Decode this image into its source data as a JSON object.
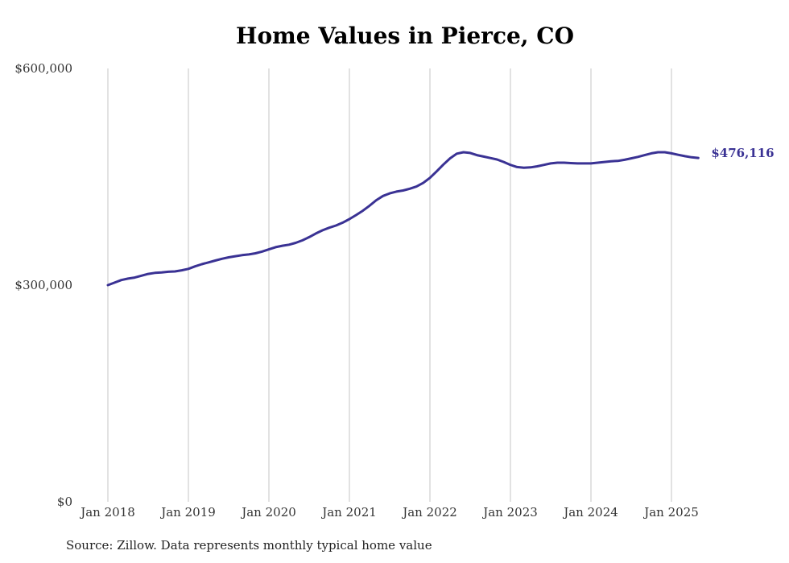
{
  "chart_data": {
    "type": "line",
    "title": "Home Values in Pierce, CO",
    "xlabel": "",
    "ylabel": "",
    "ylim": [
      0,
      600000
    ],
    "y_ticks": [
      {
        "value": 0,
        "label": "$0"
      },
      {
        "value": 300000,
        "label": "$300,000"
      },
      {
        "value": 600000,
        "label": "$600,000"
      }
    ],
    "x_ticks": [
      {
        "date": "2018-01",
        "label": "Jan 2018"
      },
      {
        "date": "2019-01",
        "label": "Jan 2019"
      },
      {
        "date": "2020-01",
        "label": "Jan 2020"
      },
      {
        "date": "2021-01",
        "label": "Jan 2021"
      },
      {
        "date": "2022-01",
        "label": "Jan 2022"
      },
      {
        "date": "2023-01",
        "label": "Jan 2023"
      },
      {
        "date": "2024-01",
        "label": "Jan 2024"
      },
      {
        "date": "2025-01",
        "label": "Jan 2025"
      }
    ],
    "grid": "vertical",
    "end_label": "$476,116",
    "series": [
      {
        "color": "#3a3294",
        "points": [
          [
            "2018-01",
            300000
          ],
          [
            "2018-02",
            303500
          ],
          [
            "2018-03",
            307000
          ],
          [
            "2018-04",
            309000
          ],
          [
            "2018-05",
            310500
          ],
          [
            "2018-06",
            313000
          ],
          [
            "2018-07",
            315500
          ],
          [
            "2018-08",
            317000
          ],
          [
            "2018-09",
            317500
          ],
          [
            "2018-10",
            318500
          ],
          [
            "2018-11",
            319000
          ],
          [
            "2018-12",
            320500
          ],
          [
            "2019-01",
            322500
          ],
          [
            "2019-02",
            326000
          ],
          [
            "2019-03",
            329000
          ],
          [
            "2019-04",
            331500
          ],
          [
            "2019-05",
            334000
          ],
          [
            "2019-06",
            336500
          ],
          [
            "2019-07",
            338500
          ],
          [
            "2019-08",
            340000
          ],
          [
            "2019-09",
            341500
          ],
          [
            "2019-10",
            342500
          ],
          [
            "2019-11",
            344000
          ],
          [
            "2019-12",
            346500
          ],
          [
            "2020-01",
            349500
          ],
          [
            "2020-02",
            352500
          ],
          [
            "2020-03",
            354500
          ],
          [
            "2020-04",
            356000
          ],
          [
            "2020-05",
            358500
          ],
          [
            "2020-06",
            362000
          ],
          [
            "2020-07",
            366500
          ],
          [
            "2020-08",
            371500
          ],
          [
            "2020-09",
            376000
          ],
          [
            "2020-10",
            379500
          ],
          [
            "2020-11",
            382500
          ],
          [
            "2020-12",
            386500
          ],
          [
            "2021-01",
            391500
          ],
          [
            "2021-02",
            397000
          ],
          [
            "2021-03",
            403000
          ],
          [
            "2021-04",
            410000
          ],
          [
            "2021-05",
            417500
          ],
          [
            "2021-06",
            423500
          ],
          [
            "2021-07",
            427000
          ],
          [
            "2021-08",
            429500
          ],
          [
            "2021-09",
            431000
          ],
          [
            "2021-10",
            433500
          ],
          [
            "2021-11",
            436500
          ],
          [
            "2021-12",
            441500
          ],
          [
            "2022-01",
            448500
          ],
          [
            "2022-02",
            457500
          ],
          [
            "2022-03",
            467000
          ],
          [
            "2022-04",
            475500
          ],
          [
            "2022-05",
            482000
          ],
          [
            "2022-06",
            484000
          ],
          [
            "2022-07",
            483000
          ],
          [
            "2022-08",
            480000
          ],
          [
            "2022-09",
            478000
          ],
          [
            "2022-10",
            476000
          ],
          [
            "2022-11",
            474000
          ],
          [
            "2022-12",
            470500
          ],
          [
            "2023-01",
            466500
          ],
          [
            "2023-02",
            463500
          ],
          [
            "2023-03",
            462500
          ],
          [
            "2023-04",
            463000
          ],
          [
            "2023-05",
            464500
          ],
          [
            "2023-06",
            466500
          ],
          [
            "2023-07",
            468500
          ],
          [
            "2023-08",
            469500
          ],
          [
            "2023-09",
            469500
          ],
          [
            "2023-10",
            469000
          ],
          [
            "2023-11",
            468500
          ],
          [
            "2023-12",
            468500
          ],
          [
            "2024-01",
            468500
          ],
          [
            "2024-02",
            469500
          ],
          [
            "2024-03",
            470500
          ],
          [
            "2024-04",
            471500
          ],
          [
            "2024-05",
            472000
          ],
          [
            "2024-06",
            473500
          ],
          [
            "2024-07",
            475500
          ],
          [
            "2024-08",
            477500
          ],
          [
            "2024-09",
            480000
          ],
          [
            "2024-10",
            482500
          ],
          [
            "2024-11",
            484000
          ],
          [
            "2024-12",
            484000
          ],
          [
            "2025-01",
            482500
          ],
          [
            "2025-02",
            480500
          ],
          [
            "2025-03",
            478500
          ],
          [
            "2025-04",
            477000
          ],
          [
            "2025-05",
            476116
          ]
        ]
      }
    ]
  },
  "source_note": "Source: Zillow. Data represents monthly typical home value"
}
